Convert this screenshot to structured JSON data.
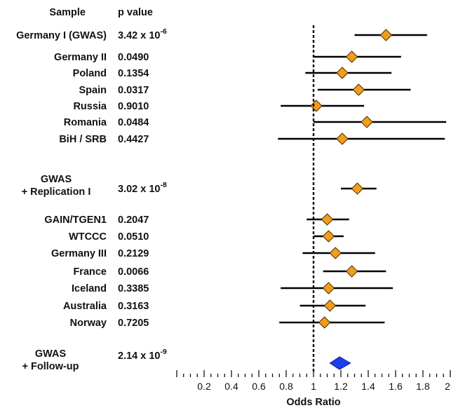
{
  "chart_data": {
    "type": "forest",
    "header_sample": "Sample",
    "header_p": "p value",
    "xlabel": "Odds Ratio",
    "xlim": [
      0,
      2
    ],
    "reference_line": 1,
    "ticks": [
      "0.2",
      "0.4",
      "0.6",
      "0.8",
      "1",
      "1.2",
      "1.4",
      "1.6",
      "1.8",
      "2"
    ],
    "marker_color": "#f29d1b",
    "summary_color": "#1a3ff0",
    "rows": [
      {
        "sample": "Germany I (GWAS)",
        "p": "3.42 x 10",
        "exp": "-6",
        "or": 1.53,
        "lo": 1.3,
        "hi": 1.83
      },
      {
        "sample": "Germany II",
        "p": "0.0490",
        "or": 1.28,
        "lo": 1.0,
        "hi": 1.64
      },
      {
        "sample": "Poland",
        "p": "0.1354",
        "or": 1.21,
        "lo": 0.94,
        "hi": 1.57
      },
      {
        "sample": "Spain",
        "p": "0.0317",
        "or": 1.33,
        "lo": 1.03,
        "hi": 1.71
      },
      {
        "sample": "Russia",
        "p": "0.9010",
        "or": 1.02,
        "lo": 0.76,
        "hi": 1.37
      },
      {
        "sample": "Romania",
        "p": "0.0484",
        "or": 1.39,
        "lo": 1.0,
        "hi": 1.97
      },
      {
        "sample": "BiH / SRB",
        "p": "0.4427",
        "or": 1.21,
        "lo": 0.74,
        "hi": 1.96
      },
      {
        "sample": "GWAS|+ Replication I",
        "p": "3.02 x 10",
        "exp": "-8",
        "or": 1.32,
        "lo": 1.2,
        "hi": 1.46
      },
      {
        "sample": "GAIN/TGEN1",
        "p": "0.2047",
        "or": 1.1,
        "lo": 0.95,
        "hi": 1.26
      },
      {
        "sample": "WTCCC",
        "p": "0.0510",
        "or": 1.11,
        "lo": 1.0,
        "hi": 1.22
      },
      {
        "sample": "Germany III",
        "p": "0.2129",
        "or": 1.16,
        "lo": 0.92,
        "hi": 1.45
      },
      {
        "sample": "France",
        "p": "0.0066",
        "or": 1.28,
        "lo": 1.07,
        "hi": 1.53
      },
      {
        "sample": "Iceland",
        "p": "0.3385",
        "or": 1.11,
        "lo": 0.76,
        "hi": 1.58
      },
      {
        "sample": "Australia",
        "p": "0.3163",
        "or": 1.12,
        "lo": 0.9,
        "hi": 1.38
      },
      {
        "sample": "Norway",
        "p": "0.7205",
        "or": 1.08,
        "lo": 0.75,
        "hi": 1.52
      },
      {
        "sample": "GWAS|+ Follow-up",
        "p": "2.14 x 10",
        "exp": "-9",
        "or": 1.19,
        "lo": 1.12,
        "hi": 1.27,
        "summary": true
      }
    ]
  }
}
